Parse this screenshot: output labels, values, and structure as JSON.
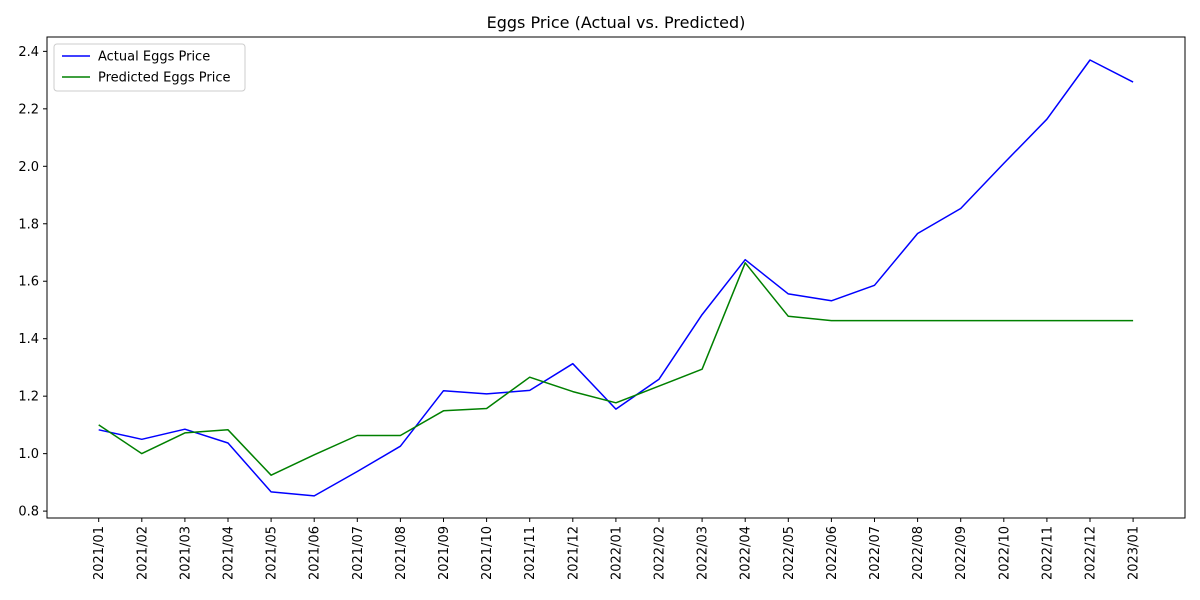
{
  "chart_data": {
    "type": "line",
    "title": "Eggs Price (Actual vs. Predicted)",
    "xlabel": "",
    "ylabel": "",
    "categories": [
      "2021/01",
      "2021/02",
      "2021/03",
      "2021/04",
      "2021/05",
      "2021/06",
      "2021/07",
      "2021/08",
      "2021/09",
      "2021/10",
      "2021/11",
      "2021/12",
      "2022/01",
      "2022/02",
      "2022/03",
      "2022/04",
      "2022/05",
      "2022/06",
      "2022/07",
      "2022/08",
      "2022/09",
      "2022/10",
      "2022/11",
      "2022/12",
      "2023/01"
    ],
    "series": [
      {
        "name": "Actual Eggs Price",
        "color": "#0000ff",
        "values": [
          1.083,
          1.05,
          1.085,
          1.037,
          0.867,
          0.853,
          0.938,
          1.026,
          1.219,
          1.208,
          1.22,
          1.313,
          1.155,
          1.259,
          1.484,
          1.675,
          1.556,
          1.532,
          1.586,
          1.766,
          1.853,
          2.01,
          2.164,
          2.37,
          2.293
        ]
      },
      {
        "name": "Predicted Eggs Price",
        "color": "#008000",
        "values": [
          1.1,
          1.0,
          1.072,
          1.083,
          0.925,
          0.996,
          1.063,
          1.063,
          1.149,
          1.157,
          1.266,
          1.216,
          1.177,
          1.235,
          1.294,
          1.664,
          1.478,
          1.463,
          1.463,
          1.463,
          1.463,
          1.463,
          1.463,
          1.463,
          1.463
        ]
      }
    ],
    "ylim": [
      0.776,
      2.45
    ],
    "yticks": [
      0.8,
      1.0,
      1.2,
      1.4,
      1.6,
      1.8,
      2.0,
      2.2,
      2.4
    ],
    "grid": false,
    "legend": "top-left"
  }
}
